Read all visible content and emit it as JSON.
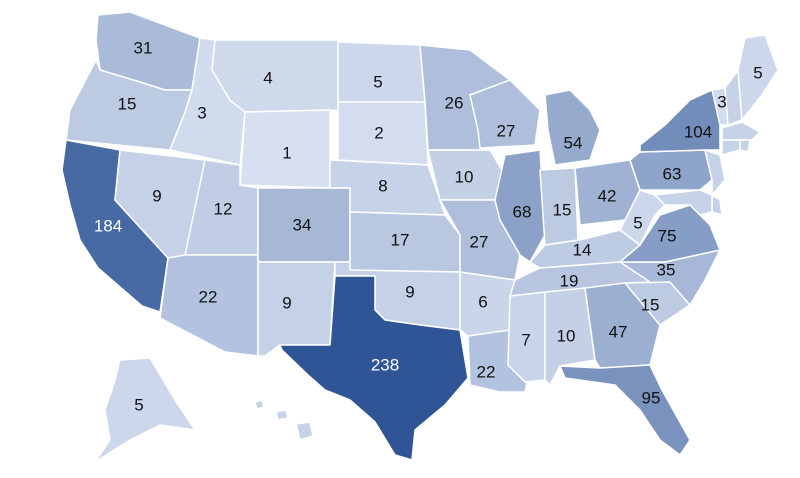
{
  "map": {
    "scale_colors": {
      "min": "#dde5f4",
      "max": "#2f5597"
    },
    "label_dark_text": "#111111",
    "label_light_text": "#ffffff",
    "states": [
      {
        "id": "WA",
        "value": "31"
      },
      {
        "id": "OR",
        "value": "15"
      },
      {
        "id": "CA",
        "value": "184"
      },
      {
        "id": "NV",
        "value": "9"
      },
      {
        "id": "ID",
        "value": "3"
      },
      {
        "id": "MT",
        "value": "4"
      },
      {
        "id": "WY",
        "value": "1"
      },
      {
        "id": "UT",
        "value": "12"
      },
      {
        "id": "AZ",
        "value": "22"
      },
      {
        "id": "CO",
        "value": "34"
      },
      {
        "id": "NM",
        "value": "9"
      },
      {
        "id": "ND",
        "value": "5"
      },
      {
        "id": "SD",
        "value": "2"
      },
      {
        "id": "NE",
        "value": "8"
      },
      {
        "id": "KS",
        "value": "17"
      },
      {
        "id": "OK",
        "value": "9"
      },
      {
        "id": "TX",
        "value": "238"
      },
      {
        "id": "MN",
        "value": "26"
      },
      {
        "id": "IA",
        "value": "10"
      },
      {
        "id": "MO",
        "value": "27"
      },
      {
        "id": "AR",
        "value": "6"
      },
      {
        "id": "LA",
        "value": "22"
      },
      {
        "id": "WI",
        "value": "27"
      },
      {
        "id": "IL",
        "value": "68"
      },
      {
        "id": "MI",
        "value": "54"
      },
      {
        "id": "IN",
        "value": "15"
      },
      {
        "id": "OH",
        "value": "42"
      },
      {
        "id": "KY",
        "value": "14"
      },
      {
        "id": "TN",
        "value": "19"
      },
      {
        "id": "MS",
        "value": "7"
      },
      {
        "id": "AL",
        "value": "10"
      },
      {
        "id": "GA",
        "value": "47"
      },
      {
        "id": "FL",
        "value": "95"
      },
      {
        "id": "SC",
        "value": "15"
      },
      {
        "id": "NC",
        "value": "35"
      },
      {
        "id": "VA",
        "value": "75"
      },
      {
        "id": "WV",
        "value": "5"
      },
      {
        "id": "PA",
        "value": "63"
      },
      {
        "id": "NY",
        "value": "104"
      },
      {
        "id": "VT",
        "value": "3"
      },
      {
        "id": "ME",
        "value": "5"
      },
      {
        "id": "AK",
        "value": "5"
      },
      {
        "id": "NH",
        "value": ""
      },
      {
        "id": "MA",
        "value": ""
      },
      {
        "id": "RI",
        "value": ""
      },
      {
        "id": "CT",
        "value": ""
      },
      {
        "id": "NJ",
        "value": ""
      },
      {
        "id": "DE",
        "value": ""
      },
      {
        "id": "MD",
        "value": ""
      },
      {
        "id": "HI",
        "value": ""
      }
    ]
  }
}
